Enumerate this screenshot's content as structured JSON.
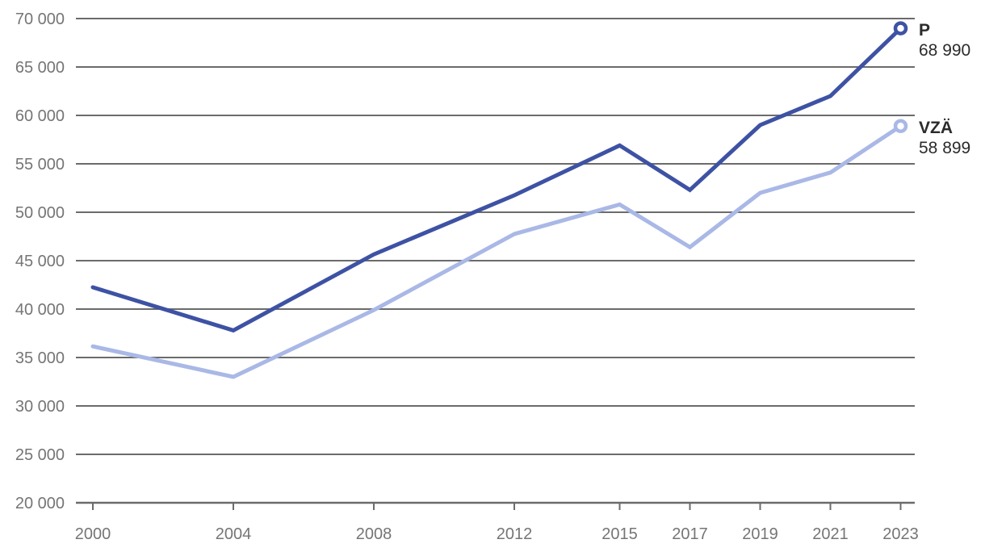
{
  "chart_data": {
    "type": "line",
    "title": "",
    "xlabel": "",
    "ylabel": "",
    "x": [
      2000,
      2004,
      2008,
      2012,
      2015,
      2017,
      2019,
      2021,
      2023
    ],
    "xtick_labels": [
      "2000",
      "2004",
      "2008",
      "2012",
      "2015",
      "2017",
      "2019",
      "2021",
      "2023"
    ],
    "ylim": [
      20000,
      70000
    ],
    "ytick_step": 5000,
    "yticks": [
      {
        "value": 20000,
        "label": "20 000"
      },
      {
        "value": 25000,
        "label": "25 000"
      },
      {
        "value": 30000,
        "label": "30 000"
      },
      {
        "value": 35000,
        "label": "35 000"
      },
      {
        "value": 40000,
        "label": "40 000"
      },
      {
        "value": 45000,
        "label": "45 000"
      },
      {
        "value": 50000,
        "label": "50 000"
      },
      {
        "value": 55000,
        "label": "55 000"
      },
      {
        "value": 60000,
        "label": "60 000"
      },
      {
        "value": 65000,
        "label": "65 000"
      },
      {
        "value": 70000,
        "label": "70 000"
      }
    ],
    "grid": true,
    "legend_position": "end-of-line-labels",
    "series": [
      {
        "name": "P",
        "slug": "p",
        "color": "#3e52a4",
        "values": [
          42250,
          37800,
          45650,
          51750,
          56900,
          52300,
          59000,
          62000,
          68990
        ],
        "end_name_label": "P",
        "end_value_label": "68 990",
        "end_marker": "open-circle"
      },
      {
        "name": "VZÄ",
        "slug": "vza",
        "color": "#a9b8e6",
        "values": [
          36150,
          33000,
          39900,
          47750,
          50800,
          46400,
          52000,
          54100,
          58899
        ],
        "end_name_label": "VZÄ",
        "end_value_label": "58 899",
        "end_marker": "open-circle"
      }
    ],
    "colors": {
      "gridline": "#6b6b6b",
      "axis_line": "#6b6b6b",
      "tick_text": "#757575",
      "end_label_text": "#2b2b2b",
      "background": "#ffffff"
    }
  }
}
